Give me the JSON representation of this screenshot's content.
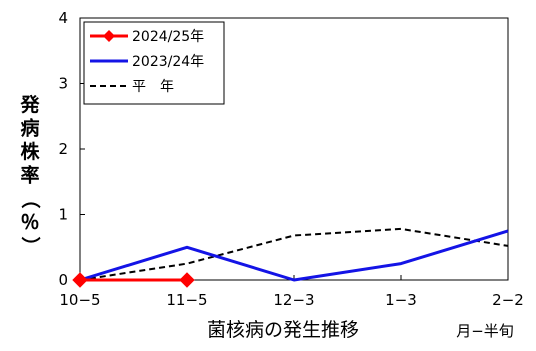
{
  "chart_data": {
    "type": "line",
    "categories": [
      "10−5",
      "11−5",
      "12−3",
      "1−3",
      "2−2"
    ],
    "ylim": [
      0,
      4
    ],
    "yticks": [
      "0",
      "1",
      "2",
      "3",
      "4"
    ],
    "ylabel_chars": [
      "発",
      "病",
      "株",
      "率",
      "（",
      "％",
      "）"
    ],
    "xlabel": "菌核病の発生推移",
    "x_unit": "月−半旬",
    "grid": false,
    "legend_position": "top-left",
    "series": [
      {
        "name": "2024/25年",
        "color": "#ff0000",
        "style": "solid-diamond",
        "values": [
          0,
          0,
          null,
          null,
          null
        ]
      },
      {
        "name": "2023/24年",
        "color": "#1414e6",
        "style": "solid",
        "values": [
          0,
          0.5,
          0,
          0.25,
          0.75
        ]
      },
      {
        "name": "平　年",
        "color": "#000000",
        "style": "dashed",
        "values": [
          0,
          0.25,
          0.68,
          0.78,
          0.52
        ]
      }
    ]
  }
}
